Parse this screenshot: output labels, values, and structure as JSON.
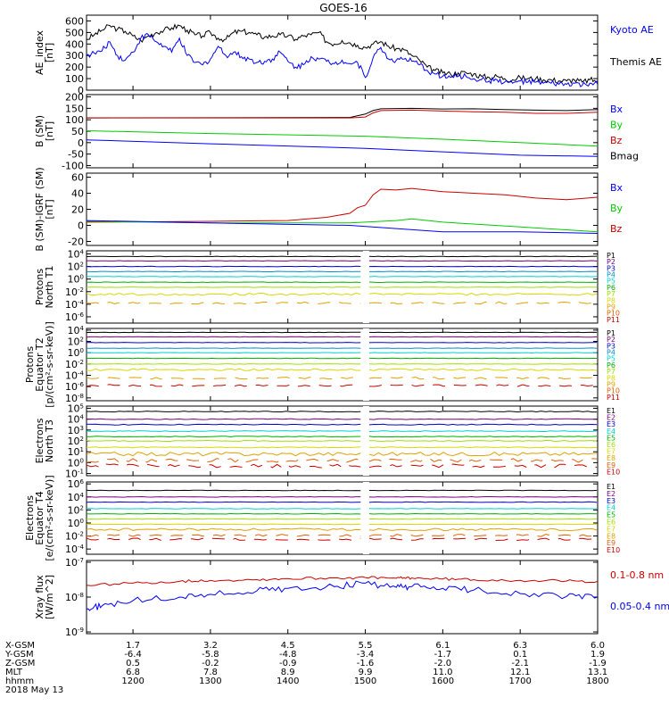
{
  "title": "GOES-16",
  "chart_data": [
    {
      "panel": "ae",
      "type": "line",
      "ylabel": [
        "AE_index",
        "[nT]"
      ],
      "yticks": [
        "600",
        "500",
        "400",
        "300",
        "200",
        "100",
        "0"
      ],
      "ylim": [
        0,
        650
      ],
      "legend": [
        {
          "label": "Kyoto AE",
          "color": "#0000ff"
        },
        {
          "label": "Themis AE",
          "color": "#000000"
        }
      ],
      "series": [
        {
          "name": "Themis AE",
          "color": "#000000",
          "x": [
            1140,
            1150,
            1160,
            1170,
            1180,
            1190,
            1200,
            1210,
            1220,
            1230,
            1240,
            1250,
            1260,
            1270,
            1280,
            1290,
            1300,
            1310,
            1320,
            1330,
            1340,
            1350,
            1360,
            1370,
            1380,
            1390,
            1400,
            1410,
            1420,
            1430,
            1440,
            1450,
            1460,
            1470,
            1480,
            1490,
            1500,
            1510,
            1520,
            1530,
            1540,
            1550,
            1560,
            1570,
            1580,
            1590,
            1600,
            1610,
            1620,
            1630,
            1640,
            1650,
            1660,
            1670,
            1680,
            1690,
            1700,
            1710,
            1720,
            1730,
            1740,
            1750,
            1760,
            1770,
            1780,
            1790,
            1800
          ],
          "y": [
            440,
            480,
            520,
            560,
            530,
            510,
            470,
            430,
            470,
            500,
            520,
            540,
            560,
            520,
            480,
            470,
            500,
            450,
            440,
            500,
            510,
            500,
            480,
            460,
            470,
            480,
            470,
            440,
            470,
            480,
            500,
            420,
            400,
            430,
            410,
            390,
            370,
            400,
            420,
            380,
            360,
            350,
            300,
            260,
            200,
            170,
            150,
            140,
            150,
            150,
            140,
            120,
            110,
            120,
            100,
            90,
            110,
            100,
            100,
            90,
            90,
            80,
            80,
            90,
            70,
            90,
            80
          ]
        },
        {
          "name": "Kyoto AE",
          "color": "#0000ff",
          "x": [
            1140,
            1150,
            1160,
            1170,
            1180,
            1190,
            1200,
            1210,
            1220,
            1230,
            1240,
            1250,
            1260,
            1270,
            1280,
            1290,
            1300,
            1310,
            1320,
            1330,
            1340,
            1350,
            1360,
            1370,
            1380,
            1390,
            1400,
            1410,
            1420,
            1430,
            1440,
            1450,
            1460,
            1470,
            1480,
            1490,
            1500,
            1510,
            1520,
            1530,
            1540,
            1550,
            1560,
            1570,
            1580,
            1590,
            1600,
            1610,
            1620,
            1630,
            1640,
            1650,
            1660,
            1670,
            1680,
            1690,
            1700,
            1710,
            1720,
            1730,
            1740,
            1750,
            1760,
            1770,
            1780,
            1790,
            1800
          ],
          "y": [
            300,
            320,
            340,
            420,
            300,
            260,
            330,
            450,
            480,
            420,
            380,
            330,
            450,
            300,
            240,
            220,
            270,
            380,
            300,
            330,
            290,
            270,
            240,
            250,
            270,
            330,
            250,
            200,
            220,
            290,
            270,
            250,
            230,
            260,
            230,
            240,
            110,
            280,
            370,
            270,
            260,
            270,
            250,
            220,
            170,
            140,
            120,
            110,
            120,
            120,
            100,
            90,
            80,
            90,
            70,
            60,
            80,
            70,
            70,
            60,
            60,
            50,
            50,
            60,
            40,
            60,
            50
          ]
        }
      ]
    },
    {
      "panel": "bsm",
      "type": "line",
      "ylabel": [
        "B (SM)",
        "[nT]"
      ],
      "yticks": [
        "200",
        "150",
        "100",
        "50",
        "0",
        "-50",
        "-100"
      ],
      "ylim": [
        -110,
        210
      ],
      "legend": [
        {
          "label": "Bx",
          "color": "#0000ff"
        },
        {
          "label": "By",
          "color": "#00cc00"
        },
        {
          "label": "Bz",
          "color": "#cc0000"
        },
        {
          "label": "Bmag",
          "color": "#000000"
        }
      ],
      "series": [
        {
          "name": "Bmag",
          "color": "#000000",
          "x": [
            1140,
            1480,
            1500,
            1510,
            1520,
            1560,
            1600,
            1640,
            1680,
            1720,
            1760,
            1800
          ],
          "y": [
            108,
            110,
            125,
            140,
            148,
            150,
            147,
            148,
            145,
            142,
            140,
            145
          ]
        },
        {
          "name": "Bz",
          "color": "#cc0000",
          "x": [
            1140,
            1480,
            1500,
            1510,
            1520,
            1560,
            1600,
            1640,
            1680,
            1720,
            1760,
            1800
          ],
          "y": [
            108,
            108,
            112,
            130,
            140,
            142,
            138,
            135,
            133,
            128,
            128,
            133
          ]
        },
        {
          "name": "By",
          "color": "#00cc00",
          "x": [
            1140,
            1300,
            1500,
            1600,
            1700,
            1800
          ],
          "y": [
            52,
            40,
            28,
            15,
            0,
            -15
          ]
        },
        {
          "name": "Bx",
          "color": "#0000ff",
          "x": [
            1140,
            1300,
            1500,
            1600,
            1700,
            1800
          ],
          "y": [
            12,
            -5,
            -25,
            -40,
            -55,
            -60
          ]
        }
      ]
    },
    {
      "panel": "bigrf",
      "type": "line",
      "ylabel": [
        "B (SM)-IGRF (SM)",
        "[nT]"
      ],
      "yticks": [
        "60",
        "40",
        "20",
        "0",
        "-20"
      ],
      "ylim": [
        -25,
        65
      ],
      "legend": [
        {
          "label": "Bx",
          "color": "#0000ff"
        },
        {
          "label": "By",
          "color": "#00cc00"
        },
        {
          "label": "Bz",
          "color": "#cc0000"
        }
      ],
      "series": [
        {
          "name": "Bz",
          "color": "#cc0000",
          "x": [
            1140,
            1300,
            1400,
            1450,
            1480,
            1490,
            1500,
            1510,
            1520,
            1540,
            1560,
            1600,
            1640,
            1680,
            1720,
            1760,
            1800
          ],
          "y": [
            4,
            5,
            6,
            10,
            15,
            22,
            25,
            38,
            45,
            44,
            46,
            42,
            40,
            38,
            34,
            32,
            35
          ]
        },
        {
          "name": "By",
          "color": "#00cc00",
          "x": [
            1140,
            1300,
            1480,
            1540,
            1560,
            1600,
            1700,
            1800
          ],
          "y": [
            5,
            3,
            3,
            6,
            8,
            4,
            -2,
            -8
          ]
        },
        {
          "name": "Bx",
          "color": "#0000ff",
          "x": [
            1140,
            1300,
            1480,
            1540,
            1600,
            1700,
            1800
          ],
          "y": [
            6,
            3,
            0,
            -4,
            -8,
            -8,
            -10
          ]
        }
      ]
    },
    {
      "panel": "protons_t1",
      "type": "line",
      "log": true,
      "ylabel": [
        "Protons",
        "North T1"
      ],
      "yticks": [
        "10^4",
        "10^2",
        "10^0",
        "10^-2",
        "10^-4",
        "10^-6"
      ],
      "ylim": [
        -7,
        4.5
      ],
      "gap": [
        1497,
        1505
      ],
      "channels": [
        {
          "label": "P1",
          "color": "#000000",
          "value": 3.6
        },
        {
          "label": "P2",
          "color": "#7a007a",
          "value": 2.9
        },
        {
          "label": "P3",
          "color": "#0000cc",
          "value": 2.0
        },
        {
          "label": "P4",
          "color": "#0090d0",
          "value": 1.2
        },
        {
          "label": "P5",
          "color": "#00d0d0",
          "value": 0.4
        },
        {
          "label": "P6",
          "color": "#00b000",
          "value": -0.5
        },
        {
          "label": "P7",
          "color": "#a0e000",
          "value": -1.3
        },
        {
          "label": "P8",
          "color": "#d8d800",
          "value": -2.4
        },
        {
          "label": "P9",
          "color": "#e0a000",
          "value": -3.8
        },
        {
          "label": "P10",
          "color": "#e06000",
          "value": null
        },
        {
          "label": "P11",
          "color": "#cc0000",
          "value": null
        }
      ]
    },
    {
      "panel": "protons_t2",
      "type": "line",
      "log": true,
      "ylabel": [
        "Protons",
        "Equator T2",
        "[p/(cm²-s-sr-keV)]"
      ],
      "yticks": [
        "10^4",
        "10^2",
        "10^0",
        "10^-2",
        "10^-4",
        "10^-6",
        "10^-8"
      ],
      "ylim": [
        -8.5,
        4.3
      ],
      "gap": [
        1497,
        1505
      ],
      "channels": [
        {
          "label": "P1",
          "color": "#000000",
          "value": 3.6
        },
        {
          "label": "P2",
          "color": "#7a007a",
          "value": 2.8
        },
        {
          "label": "P3",
          "color": "#0000cc",
          "value": 1.8
        },
        {
          "label": "P4",
          "color": "#0090d0",
          "value": 0.8
        },
        {
          "label": "P5",
          "color": "#00d0d0",
          "value": 0.0
        },
        {
          "label": "P6",
          "color": "#00b000",
          "value": -1.0
        },
        {
          "label": "P7",
          "color": "#a0e000",
          "value": -2.0
        },
        {
          "label": "P8",
          "color": "#d8d800",
          "value": -3.0
        },
        {
          "label": "P9",
          "color": "#e0a000",
          "value": -4.5
        },
        {
          "label": "P10",
          "color": "#e06000",
          "value": null
        },
        {
          "label": "P11",
          "color": "#cc0000",
          "value": -5.8
        }
      ]
    },
    {
      "panel": "electrons_t3",
      "type": "line",
      "log": true,
      "ylabel": [
        "Electrons",
        "North T3"
      ],
      "yticks": [
        "10^5",
        "10^4",
        "10^3",
        "10^2",
        "10^1",
        "10^0",
        "10^-1"
      ],
      "ylim": [
        -1.2,
        5.2
      ],
      "gap": [
        1497,
        1505
      ],
      "channels": [
        {
          "label": "E1",
          "color": "#000000",
          "value": 4.7
        },
        {
          "label": "E2",
          "color": "#7a007a",
          "value": 4.0
        },
        {
          "label": "E3",
          "color": "#0000cc",
          "value": 3.5
        },
        {
          "label": "E4",
          "color": "#00d0d0",
          "value": 2.9
        },
        {
          "label": "E5",
          "color": "#00b000",
          "value": 2.4
        },
        {
          "label": "E6",
          "color": "#a0e000",
          "value": 2.0
        },
        {
          "label": "E7",
          "color": "#d8d800",
          "value": 1.4
        },
        {
          "label": "E8",
          "color": "#e0a000",
          "value": 0.8
        },
        {
          "label": "E9",
          "color": "#e06000",
          "value": 0.2
        },
        {
          "label": "E10",
          "color": "#cc0000",
          "value": -0.3
        }
      ]
    },
    {
      "panel": "electrons_t4",
      "type": "line",
      "log": true,
      "ylabel": [
        "Electrons",
        "Equator T4",
        "[e/(cm²-s-sr-keV)]"
      ],
      "yticks": [
        "10^6",
        "10^4",
        "10^2",
        "10^0",
        "10^-2",
        "10^-4"
      ],
      "ylim": [
        -4.8,
        6.3
      ],
      "gap": [
        1497,
        1505
      ],
      "channels": [
        {
          "label": "E1",
          "color": "#000000",
          "value": 5.0
        },
        {
          "label": "E2",
          "color": "#7a007a",
          "value": 4.0
        },
        {
          "label": "E3",
          "color": "#0000cc",
          "value": 3.2
        },
        {
          "label": "E4",
          "color": "#00d0d0",
          "value": 2.2
        },
        {
          "label": "E5",
          "color": "#00b000",
          "value": 1.4
        },
        {
          "label": "E6",
          "color": "#a0e000",
          "value": 0.6
        },
        {
          "label": "E7",
          "color": "#d8d800",
          "value": -0.2
        },
        {
          "label": "E8",
          "color": "#e0a000",
          "value": -1.0
        },
        {
          "label": "E9",
          "color": "#e06000",
          "value": -1.9
        },
        {
          "label": "E10",
          "color": "#cc0000",
          "value": -2.5
        }
      ]
    },
    {
      "panel": "xray",
      "type": "line",
      "log": true,
      "ylabel": [
        "Xray flux",
        "[W/m^2]"
      ],
      "yticks": [
        "10^-7",
        "10^-8",
        "10^-9"
      ],
      "ylim": [
        -9.05,
        -6.95
      ],
      "legend": [
        {
          "label": "0.1-0.8 nm",
          "color": "#cc0000"
        },
        {
          "label": "0.05-0.4 nm",
          "color": "#0000ff"
        }
      ],
      "series": [
        {
          "name": "0.1-0.8 nm",
          "color": "#cc0000",
          "x": [
            1140,
            1200,
            1260,
            1300,
            1360,
            1400,
            1460,
            1500,
            1540,
            1560,
            1600,
            1640,
            1700,
            1760,
            1800
          ],
          "y": [
            -7.66,
            -7.6,
            -7.55,
            -7.52,
            -7.5,
            -7.47,
            -7.45,
            -7.44,
            -7.46,
            -7.45,
            -7.48,
            -7.5,
            -7.52,
            -7.54,
            -7.55
          ]
        },
        {
          "name": "0.05-0.4 nm",
          "color": "#0000ff",
          "x": [
            1140,
            1160,
            1200,
            1260,
            1300,
            1360,
            1400,
            1460,
            1500,
            1540,
            1560,
            1600,
            1640,
            1700,
            1760,
            1800
          ],
          "y": [
            -8.35,
            -8.25,
            -8.1,
            -8.0,
            -7.92,
            -7.82,
            -7.75,
            -7.7,
            -7.6,
            -7.72,
            -7.7,
            -7.75,
            -7.8,
            -7.9,
            -7.98,
            -8.0
          ]
        }
      ]
    }
  ],
  "xaxis": {
    "xlim": [
      1140,
      1800
    ],
    "ticks": [
      1200,
      1300,
      1400,
      1500,
      1600,
      1700,
      1800
    ],
    "rows": [
      {
        "label": "X-GSM",
        "values": [
          "1.7",
          "3.2",
          "4.5",
          "5.5",
          "6.1",
          "6.3",
          "6.0"
        ]
      },
      {
        "label": "Y-GSM",
        "values": [
          "-6.4",
          "-5.8",
          "-4.8",
          "-3.4",
          "-1.7",
          "0.1",
          "1.9"
        ]
      },
      {
        "label": "Z-GSM",
        "values": [
          "0.5",
          "-0.2",
          "-0.9",
          "-1.6",
          "-2.0",
          "-2.1",
          "-1.9"
        ]
      },
      {
        "label": "MLT",
        "values": [
          "6.8",
          "7.8",
          "8.9",
          "9.9",
          "11.0",
          "12.1",
          "13.1"
        ]
      },
      {
        "label": "hhmm",
        "values": [
          "1200",
          "1300",
          "1400",
          "1500",
          "1600",
          "1700",
          "1800"
        ]
      }
    ],
    "date": "2018 May 13"
  }
}
